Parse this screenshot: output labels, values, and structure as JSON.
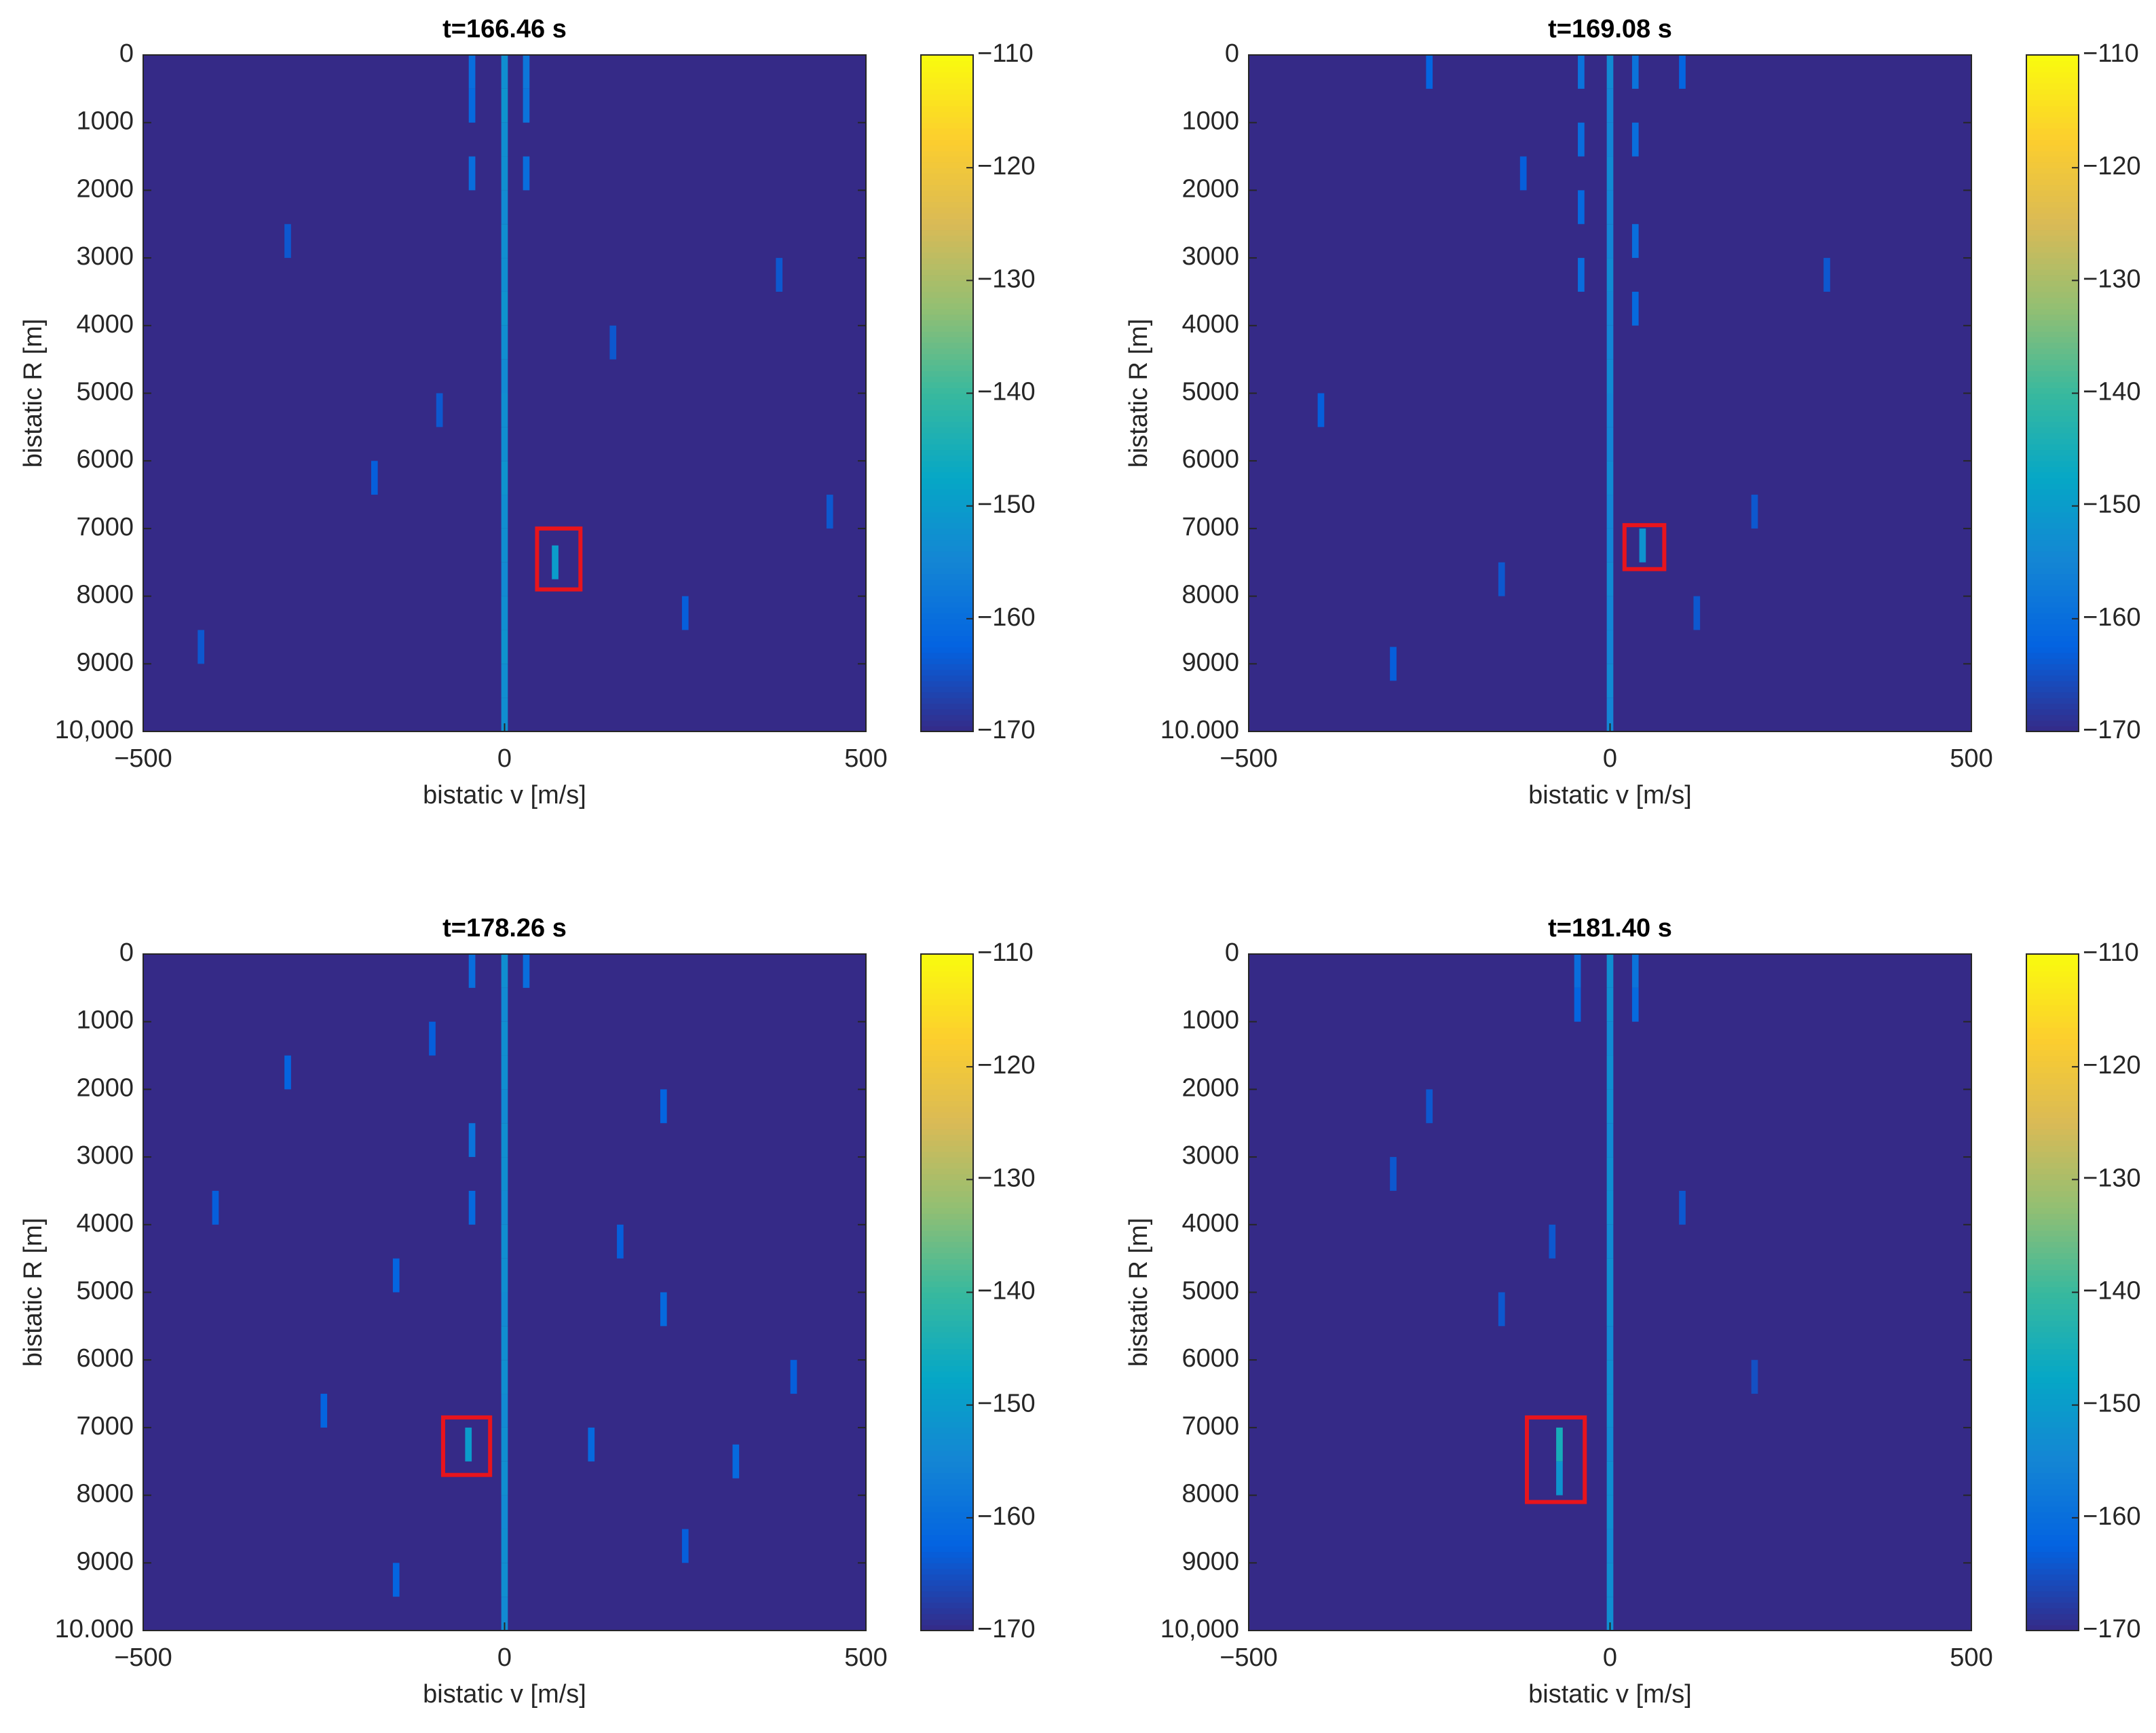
{
  "chart_data": [
    {
      "type": "heatmap",
      "title": "t=166.46 s",
      "xlabel": "bistatic v [m/s]",
      "ylabel": "bistatic R [m]",
      "xlim": [
        -500,
        500
      ],
      "xticks": [
        {
          "value": -500,
          "label": "−500"
        },
        0,
        500
      ],
      "ylim": [
        0,
        10000
      ],
      "y_reversed": true,
      "yticks": [
        0,
        1000,
        2000,
        3000,
        4000,
        5000,
        6000,
        7000,
        8000,
        9000,
        {
          "value": 10000,
          "label": "10,000"
        }
      ],
      "clim": [
        -170,
        -110
      ],
      "cticks": [
        {
          "value": -170,
          "label": "−170"
        },
        {
          "value": -160,
          "label": "−160"
        },
        {
          "value": -150,
          "label": "−150"
        },
        {
          "value": -140,
          "label": "−140"
        },
        {
          "value": -130,
          "label": "−130"
        },
        {
          "value": -120,
          "label": "−120"
        },
        {
          "value": -110,
          "label": "−110"
        }
      ],
      "colormap": [
        "#352a87",
        "#0363e1",
        "#1485d4",
        "#06a7c6",
        "#38b99e",
        "#92bf73",
        "#d9ba56",
        "#fcce2e",
        "#f9fb0e"
      ],
      "x": [
        0,
        0,
        0,
        0,
        0,
        0,
        0,
        0,
        0,
        0,
        0,
        0,
        0,
        0,
        0,
        0,
        0,
        0,
        0,
        0,
        -45,
        -45,
        -45,
        30,
        30,
        30,
        70,
        -300,
        -180,
        150,
        380,
        -420,
        250,
        -90,
        450
      ],
      "y": [
        250,
        750,
        1250,
        1750,
        2250,
        2750,
        3250,
        3750,
        4250,
        4750,
        5250,
        5750,
        6250,
        6750,
        7250,
        7750,
        8250,
        8750,
        9250,
        9750,
        250,
        750,
        1750,
        250,
        750,
        1750,
        7500,
        2750,
        6250,
        4250,
        3250,
        8750,
        8250,
        5250,
        6750
      ],
      "values": [
        -153,
        -152,
        -153,
        -153,
        -154,
        -153,
        -153,
        -152,
        -153,
        -154,
        -153,
        -153,
        -152,
        -153,
        -153,
        -154,
        -153,
        -152,
        -153,
        -153,
        -160,
        -161,
        -160,
        -158,
        -159,
        -160,
        -150,
        -164,
        -163,
        -164,
        -164,
        -164,
        -163,
        -164,
        -164
      ],
      "highlight": {
        "xlim": [
          45,
          105
        ],
        "ylim": [
          7000,
          7900
        ],
        "color": "#e8141c"
      }
    },
    {
      "type": "heatmap",
      "title": "t=169.08 s",
      "xlabel": "bistatic v [m/s]",
      "ylabel": "bistatic R [m]",
      "xlim": [
        -500,
        500
      ],
      "xticks": [
        {
          "value": -500,
          "label": "−500"
        },
        0,
        500
      ],
      "ylim": [
        0,
        10000
      ],
      "y_reversed": true,
      "yticks": [
        0,
        1000,
        2000,
        3000,
        4000,
        5000,
        6000,
        7000,
        8000,
        9000,
        {
          "value": 10000,
          "label": "10.000"
        }
      ],
      "clim": [
        -170,
        -110
      ],
      "cticks": [
        {
          "value": -170,
          "label": "−170"
        },
        {
          "value": -160,
          "label": "−160"
        },
        {
          "value": -150,
          "label": "−150"
        },
        {
          "value": -140,
          "label": "−140"
        },
        {
          "value": -130,
          "label": "−130"
        },
        {
          "value": -120,
          "label": "−120"
        },
        {
          "value": -110,
          "label": "−110"
        }
      ],
      "colormap": [
        "#352a87",
        "#0363e1",
        "#1485d4",
        "#06a7c6",
        "#38b99e",
        "#92bf73",
        "#d9ba56",
        "#fcce2e",
        "#f9fb0e"
      ],
      "x": [
        0,
        0,
        0,
        0,
        0,
        0,
        0,
        0,
        0,
        0,
        0,
        0,
        0,
        0,
        0,
        0,
        0,
        0,
        0,
        0,
        -40,
        -40,
        -40,
        -40,
        35,
        35,
        35,
        35,
        45,
        -250,
        -120,
        100,
        300,
        -400,
        200,
        -300,
        120,
        -150
      ],
      "y": [
        250,
        750,
        1250,
        1750,
        2250,
        2750,
        3250,
        3750,
        4250,
        4750,
        5250,
        5750,
        6250,
        6750,
        7250,
        7750,
        8250,
        8750,
        9250,
        9750,
        250,
        1250,
        2250,
        3250,
        250,
        1250,
        2750,
        3750,
        7250,
        250,
        1750,
        250,
        3250,
        5250,
        6750,
        9000,
        8250,
        7750
      ],
      "values": [
        -154,
        -155,
        -155,
        -154,
        -155,
        -155,
        -154,
        -155,
        -155,
        -154,
        -155,
        -155,
        -154,
        -155,
        -155,
        -154,
        -155,
        -155,
        -154,
        -155,
        -159,
        -160,
        -161,
        -160,
        -159,
        -160,
        -160,
        -161,
        -152,
        -162,
        -163,
        -162,
        -164,
        -163,
        -164,
        -163,
        -164,
        -164
      ],
      "highlight": {
        "xlim": [
          20,
          75
        ],
        "ylim": [
          6950,
          7600
        ],
        "color": "#e8141c"
      }
    },
    {
      "type": "heatmap",
      "title": "t=178.26 s",
      "xlabel": "bistatic v [m/s]",
      "ylabel": "bistatic R [m]",
      "xlim": [
        -500,
        500
      ],
      "xticks": [
        {
          "value": -500,
          "label": "−500"
        },
        0,
        500
      ],
      "ylim": [
        0,
        10000
      ],
      "y_reversed": true,
      "yticks": [
        0,
        1000,
        2000,
        3000,
        4000,
        5000,
        6000,
        7000,
        8000,
        9000,
        {
          "value": 10000,
          "label": "10.000"
        }
      ],
      "clim": [
        -170,
        -110
      ],
      "cticks": [
        {
          "value": -170,
          "label": "−170"
        },
        {
          "value": -160,
          "label": "−160"
        },
        {
          "value": -150,
          "label": "−150"
        },
        {
          "value": -140,
          "label": "−140"
        },
        {
          "value": -130,
          "label": "−130"
        },
        {
          "value": -120,
          "label": "−120"
        },
        {
          "value": -110,
          "label": "−110"
        }
      ],
      "colormap": [
        "#352a87",
        "#0363e1",
        "#1485d4",
        "#06a7c6",
        "#38b99e",
        "#92bf73",
        "#d9ba56",
        "#fcce2e",
        "#f9fb0e"
      ],
      "x": [
        0,
        0,
        0,
        0,
        0,
        0,
        0,
        0,
        0,
        0,
        0,
        0,
        0,
        0,
        0,
        0,
        0,
        0,
        0,
        0,
        -45,
        -45,
        -45,
        -50,
        30,
        -300,
        -150,
        -150,
        120,
        220,
        220,
        320,
        -400,
        400,
        -250,
        250,
        -100,
        160
      ],
      "y": [
        250,
        750,
        1250,
        1750,
        2250,
        2750,
        3250,
        3750,
        4250,
        4750,
        5250,
        5750,
        6250,
        6750,
        7250,
        7750,
        8250,
        8750,
        9250,
        9750,
        250,
        2750,
        3750,
        7250,
        250,
        1750,
        4750,
        9250,
        7250,
        2250,
        5250,
        7500,
        3750,
        6250,
        6750,
        8750,
        1250,
        4250
      ],
      "values": [
        -153,
        -154,
        -153,
        -153,
        -154,
        -153,
        -153,
        -154,
        -153,
        -153,
        -154,
        -153,
        -153,
        -154,
        -153,
        -153,
        -154,
        -153,
        -153,
        -154,
        -160,
        -159,
        -161,
        -150,
        -160,
        -162,
        -162,
        -162,
        -161,
        -162,
        -161,
        -161,
        -163,
        -163,
        -162,
        -163,
        -163,
        -163
      ],
      "highlight": {
        "xlim": [
          -85,
          -20
        ],
        "ylim": [
          6850,
          7700
        ],
        "color": "#e8141c"
      }
    },
    {
      "type": "heatmap",
      "title": "t=181.40 s",
      "xlabel": "bistatic v [m/s]",
      "ylabel": "bistatic R [m]",
      "xlim": [
        -500,
        500
      ],
      "xticks": [
        {
          "value": -500,
          "label": "−500"
        },
        0,
        500
      ],
      "ylim": [
        0,
        10000
      ],
      "y_reversed": true,
      "yticks": [
        0,
        1000,
        2000,
        3000,
        4000,
        5000,
        6000,
        7000,
        8000,
        9000,
        {
          "value": 10000,
          "label": "10,000"
        }
      ],
      "clim": [
        -170,
        -110
      ],
      "cticks": [
        {
          "value": -170,
          "label": "−170"
        },
        {
          "value": -160,
          "label": "−160"
        },
        {
          "value": -150,
          "label": "−150"
        },
        {
          "value": -140,
          "label": "−140"
        },
        {
          "value": -130,
          "label": "−130"
        },
        {
          "value": -120,
          "label": "−120"
        },
        {
          "value": -110,
          "label": "−110"
        }
      ],
      "colormap": [
        "#352a87",
        "#0363e1",
        "#1485d4",
        "#06a7c6",
        "#38b99e",
        "#92bf73",
        "#d9ba56",
        "#fcce2e",
        "#f9fb0e"
      ],
      "x": [
        0,
        0,
        0,
        0,
        0,
        0,
        0,
        0,
        0,
        0,
        0,
        0,
        0,
        0,
        0,
        0,
        0,
        0,
        0,
        0,
        -45,
        -45,
        35,
        35,
        -70,
        -70,
        -250,
        -150,
        100,
        -300,
        -80,
        200
      ],
      "y": [
        250,
        750,
        1250,
        1750,
        2250,
        2750,
        3250,
        3750,
        4250,
        4750,
        5250,
        5750,
        6250,
        6750,
        7250,
        7750,
        8250,
        8750,
        9250,
        9750,
        250,
        750,
        250,
        750,
        7250,
        7750,
        2250,
        5250,
        3750,
        3250,
        4250,
        6250
      ],
      "values": [
        -153,
        -153,
        -154,
        -153,
        -153,
        -154,
        -153,
        -153,
        -154,
        -153,
        -153,
        -154,
        -153,
        -153,
        -154,
        -153,
        -153,
        -154,
        -153,
        -153,
        -160,
        -162,
        -159,
        -161,
        -145,
        -152,
        -164,
        -164,
        -164,
        -164,
        -164,
        -165
      ],
      "highlight": {
        "xlim": [
          -115,
          -35
        ],
        "ylim": [
          6850,
          8100
        ],
        "color": "#e8141c"
      }
    }
  ]
}
